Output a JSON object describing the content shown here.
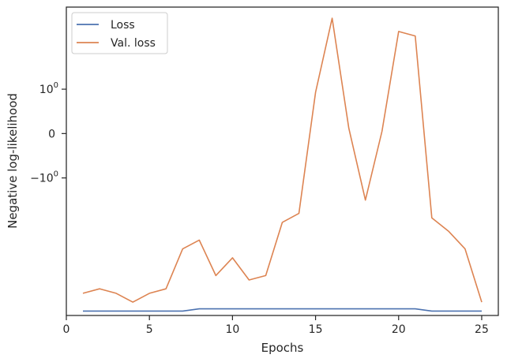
{
  "chart_data": {
    "type": "line",
    "xlabel": "Epochs",
    "ylabel": "Negative log-likelihood",
    "yscale": "symlog",
    "xlim": [
      0,
      26
    ],
    "grid": false,
    "legend_position": "top-left",
    "x_ticks": [
      0,
      5,
      10,
      15,
      20,
      25
    ],
    "y_ticks": [
      {
        "label": "10",
        "exponent": "0",
        "value": 1
      },
      {
        "label": "0",
        "exponent": "",
        "value": 0
      },
      {
        "label": "−10",
        "exponent": "0",
        "value": -1
      }
    ],
    "x": [
      1,
      2,
      3,
      4,
      5,
      6,
      7,
      8,
      9,
      10,
      11,
      12,
      13,
      14,
      15,
      16,
      17,
      18,
      19,
      20,
      21,
      22,
      23,
      24,
      25
    ],
    "series": [
      {
        "name": "Loss",
        "color": "#4c72b0",
        "values": [
          -4.0,
          -4.0,
          -4.0,
          -4.0,
          -4.0,
          -4.0,
          -4.0,
          -3.95,
          -3.95,
          -3.95,
          -3.95,
          -3.95,
          -3.95,
          -3.95,
          -3.95,
          -3.95,
          -3.95,
          -3.95,
          -3.95,
          -3.95,
          -3.95,
          -4.0,
          -4.0,
          -4.0,
          -4.0
        ]
      },
      {
        "name": "Val. loss",
        "color": "#dd8452",
        "values": [
          -3.6,
          -3.5,
          -3.6,
          -3.8,
          -3.6,
          -3.5,
          -2.6,
          -2.4,
          -3.2,
          -2.8,
          -3.3,
          -3.2,
          -2.0,
          -1.8,
          0.93,
          2.6,
          0.12,
          -1.5,
          0.05,
          2.3,
          2.2,
          -1.9,
          -2.2,
          -2.6,
          -3.8
        ]
      }
    ]
  }
}
